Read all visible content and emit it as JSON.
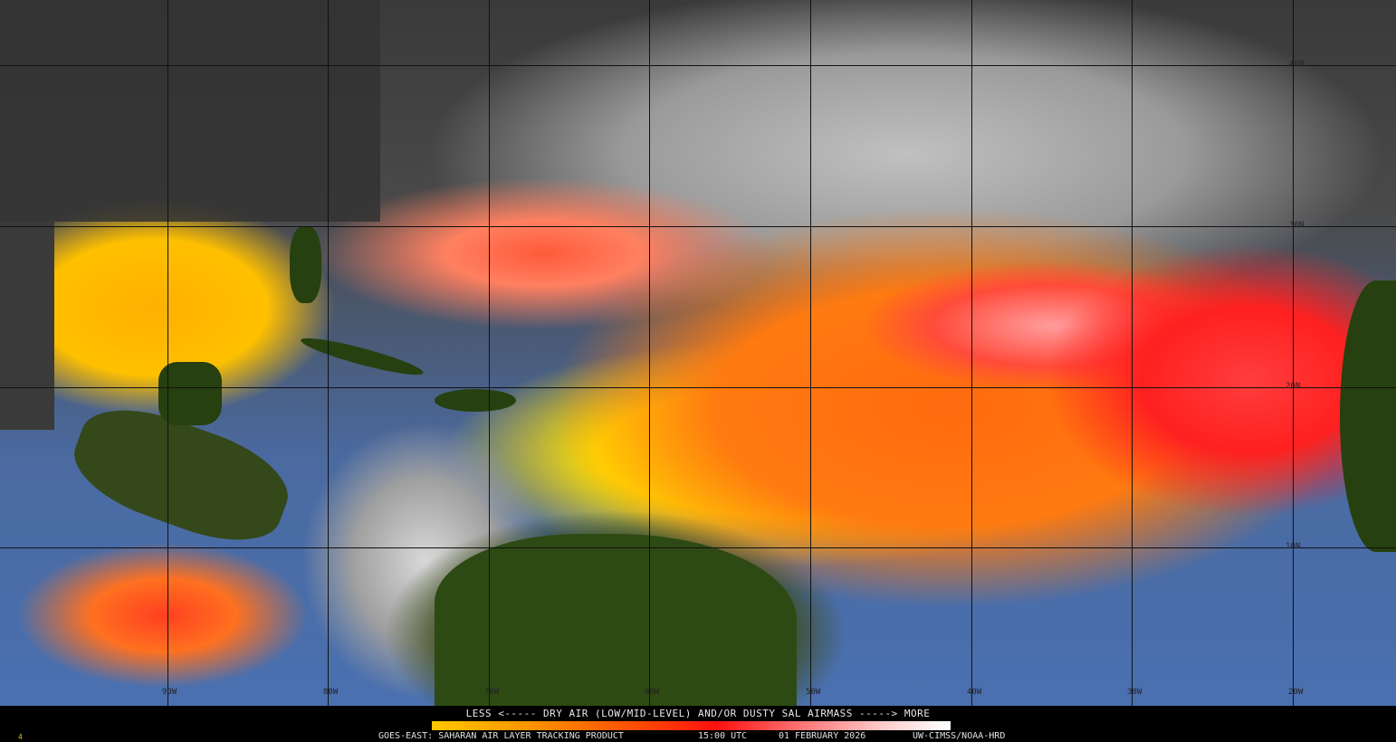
{
  "legend": {
    "title": "LESS <----- DRY AIR (LOW/MID-LEVEL) AND/OR DUSTY SAL AIRMASS -----> MORE",
    "colors": [
      "#ffc800",
      "#ff9000",
      "#ff4a00",
      "#ff1010",
      "#ff7a7a",
      "#ffd0d0",
      "#ffffff"
    ]
  },
  "footer": {
    "product": "GOES-EAST: SAHARAN AIR LAYER TRACKING PRODUCT",
    "time": "15:00 UTC",
    "date": "01 FEBRUARY 2026",
    "credit": "UW-CIMSS/NOAA-HRD",
    "corner_mark": "4"
  },
  "latitude_labels": [
    "40N",
    "30N",
    "20N",
    "10N"
  ],
  "longitude_labels": [
    "90W",
    "80W",
    "70W",
    "60W",
    "50W",
    "40W",
    "30W",
    "20W"
  ]
}
